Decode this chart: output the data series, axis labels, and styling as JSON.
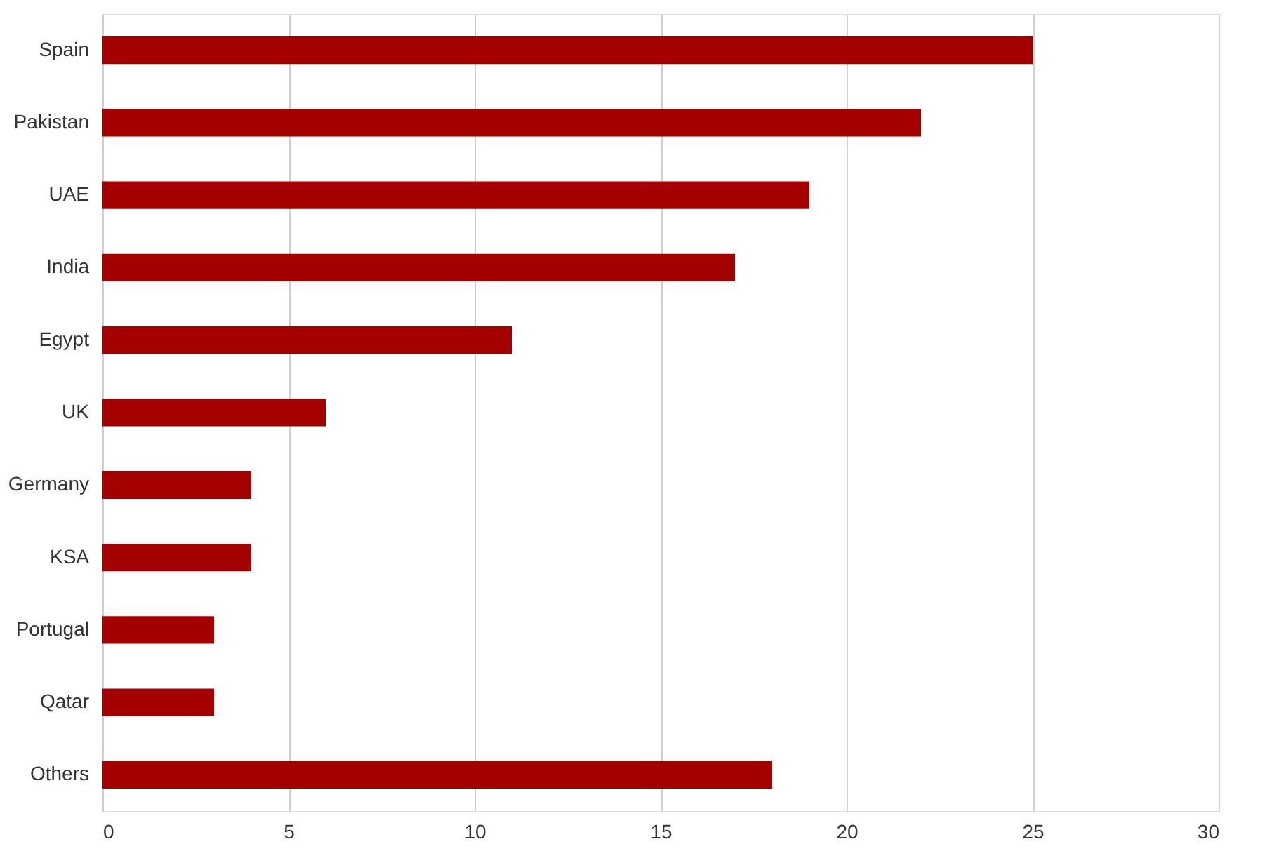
{
  "chart_data": {
    "type": "bar",
    "orientation": "horizontal",
    "categories": [
      "Spain",
      "Pakistan",
      "UAE",
      "India",
      "Egypt",
      "UK",
      "Germany",
      "KSA",
      "Portugal",
      "Qatar",
      "Others"
    ],
    "values": [
      25,
      22,
      19,
      17,
      11,
      6,
      4,
      4,
      3,
      3,
      18
    ],
    "color": "#a50000",
    "xlim": [
      0,
      30
    ],
    "xticks": [
      0,
      5,
      10,
      15,
      20,
      25,
      30
    ],
    "grid": "x"
  }
}
